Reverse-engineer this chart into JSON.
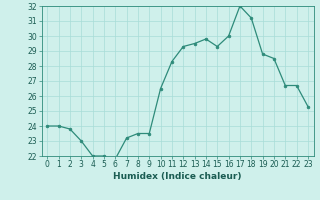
{
  "x": [
    0,
    1,
    2,
    3,
    4,
    5,
    6,
    7,
    8,
    9,
    10,
    11,
    12,
    13,
    14,
    15,
    16,
    17,
    18,
    19,
    20,
    21,
    22,
    23
  ],
  "y": [
    24.0,
    24.0,
    23.8,
    23.0,
    22.0,
    22.0,
    21.8,
    23.2,
    23.5,
    23.5,
    26.5,
    28.3,
    29.3,
    29.5,
    29.8,
    29.3,
    30.0,
    32.0,
    31.2,
    28.8,
    28.5,
    26.7,
    26.7,
    25.3
  ],
  "xlabel": "Humidex (Indice chaleur)",
  "ylim": [
    22,
    32
  ],
  "xlim": [
    -0.5,
    23.5
  ],
  "yticks": [
    22,
    23,
    24,
    25,
    26,
    27,
    28,
    29,
    30,
    31,
    32
  ],
  "xticks": [
    0,
    1,
    2,
    3,
    4,
    5,
    6,
    7,
    8,
    9,
    10,
    11,
    12,
    13,
    14,
    15,
    16,
    17,
    18,
    19,
    20,
    21,
    22,
    23
  ],
  "line_color": "#2e8b7a",
  "marker_color": "#2e8b7a",
  "bg_color": "#cff0eb",
  "grid_color": "#a8ddd7",
  "label_fontsize": 6.5,
  "tick_fontsize": 5.5
}
